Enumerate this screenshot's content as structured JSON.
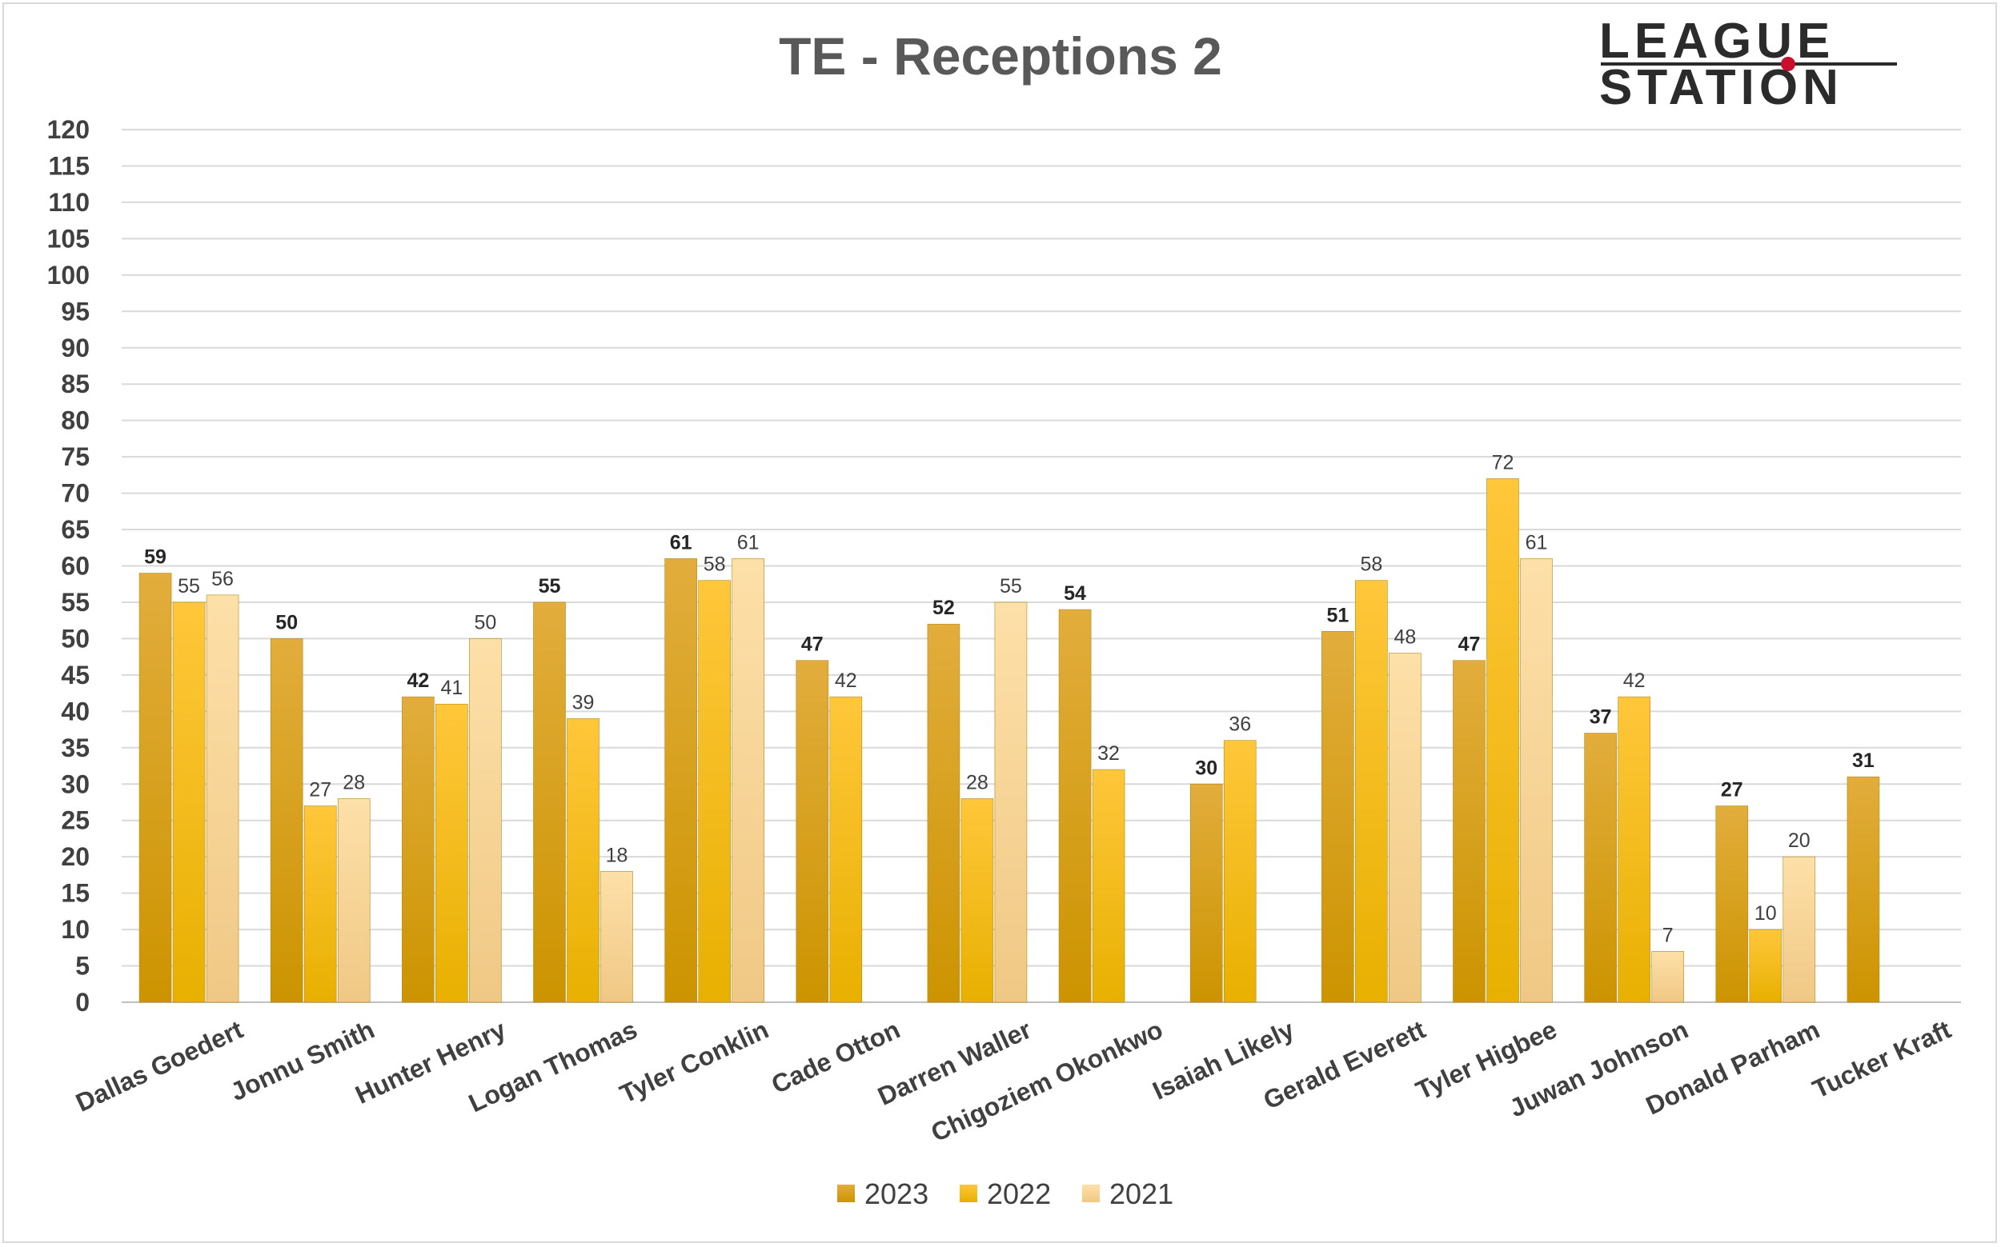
{
  "chart_data": {
    "type": "bar",
    "title": "TE - Receptions 2",
    "xlabel": "",
    "ylabel": "",
    "ylim": [
      0,
      120
    ],
    "ytick_step": 5,
    "grid": true,
    "legend_position": "bottom",
    "categories": [
      "Dallas Goedert",
      "Jonnu Smith",
      "Hunter Henry",
      "Logan Thomas",
      "Tyler Conklin",
      "Cade Otton",
      "Darren Waller",
      "Chigoziem Okonkwo",
      "Isaiah Likely",
      "Gerald Everett",
      "Tyler Higbee",
      "Juwan Johnson",
      "Donald Parham",
      "Tucker Kraft"
    ],
    "series": [
      {
        "name": "2023",
        "color": "#d4a017",
        "values": [
          59,
          50,
          42,
          55,
          61,
          47,
          52,
          54,
          30,
          51,
          47,
          37,
          27,
          31
        ]
      },
      {
        "name": "2022",
        "color": "#ffc000",
        "values": [
          55,
          27,
          41,
          39,
          58,
          42,
          28,
          32,
          36,
          58,
          72,
          42,
          10,
          null
        ]
      },
      {
        "name": "2021",
        "color": "#fbd89a",
        "values": [
          56,
          28,
          50,
          18,
          61,
          null,
          55,
          null,
          null,
          48,
          61,
          7,
          20,
          null
        ]
      }
    ]
  },
  "logo": {
    "line1": "LEAGUE",
    "line2": "STATION",
    "accent_color": "#c8102e"
  }
}
